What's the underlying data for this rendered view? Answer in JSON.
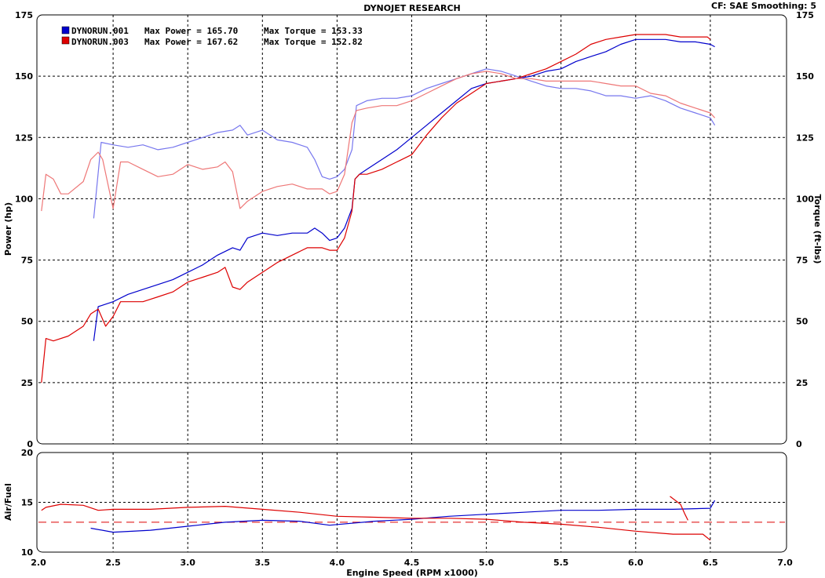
{
  "header": {
    "title": "DYNOJET RESEARCH",
    "settings": "CF: SAE  Smoothing: 5"
  },
  "legend": [
    {
      "run": "DYNORUN.001",
      "power_text": "Max Power = 165.70",
      "torque_text": "Max Torque = 153.33",
      "color": "#0000cc"
    },
    {
      "run": "DYNORUN.003",
      "power_text": "Max Power = 167.62",
      "torque_text": "Max Torque = 152.82",
      "color": "#dd0000"
    }
  ],
  "colors": {
    "run1_power": "#0000cc",
    "run1_torque": "#7777ee",
    "run2_power": "#dd0000",
    "run2_torque": "#ee7777",
    "grid": "#000000",
    "afr_ref": "#dd0000"
  },
  "chart_data": [
    {
      "type": "line",
      "title": "DYNOJET RESEARCH",
      "xlabel": "Engine Speed (RPM x1000)",
      "ylabel": "Power (hp)",
      "ylabel_right": "Torque (ft-lbs)",
      "xlim": [
        2.0,
        7.0
      ],
      "ylim": [
        0,
        175
      ],
      "ylim_right": [
        0,
        175
      ],
      "x_ticks": [
        "2.0",
        "2.5",
        "3.0",
        "3.5",
        "4.0",
        "4.5",
        "5.0",
        "5.5",
        "6.0",
        "6.5",
        "7.0"
      ],
      "y_ticks": [
        "0",
        "25",
        "50",
        "75",
        "100",
        "125",
        "150",
        "175"
      ],
      "grid": true,
      "legend_position": "top-left",
      "series": [
        {
          "name": "DYNORUN.001 Power",
          "role": "run1_power",
          "x": [
            2.37,
            2.4,
            2.5,
            2.6,
            2.7,
            2.8,
            2.9,
            3.0,
            3.1,
            3.2,
            3.3,
            3.35,
            3.4,
            3.5,
            3.6,
            3.7,
            3.8,
            3.85,
            3.9,
            3.95,
            4.0,
            4.05,
            4.1,
            4.12,
            4.15,
            4.2,
            4.3,
            4.4,
            4.5,
            4.6,
            4.7,
            4.8,
            4.9,
            5.0,
            5.1,
            5.2,
            5.3,
            5.4,
            5.5,
            5.6,
            5.7,
            5.8,
            5.9,
            6.0,
            6.1,
            6.2,
            6.3,
            6.4,
            6.5,
            6.53
          ],
          "y": [
            42,
            56,
            58,
            61,
            63,
            65,
            67,
            70,
            73,
            77,
            80,
            79,
            84,
            86,
            85,
            86,
            86,
            88,
            86,
            83,
            84,
            88,
            96,
            108,
            110,
            112,
            116,
            120,
            125,
            130,
            135,
            140,
            145,
            147,
            148,
            149,
            150,
            152,
            153,
            156,
            158,
            160,
            163,
            165,
            165,
            165,
            164,
            164,
            163,
            162
          ]
        },
        {
          "name": "DYNORUN.001 Torque",
          "role": "run1_torque",
          "x": [
            2.37,
            2.42,
            2.5,
            2.6,
            2.7,
            2.8,
            2.9,
            3.0,
            3.1,
            3.2,
            3.3,
            3.35,
            3.4,
            3.5,
            3.6,
            3.7,
            3.8,
            3.85,
            3.9,
            3.95,
            4.0,
            4.05,
            4.1,
            4.13,
            4.2,
            4.3,
            4.4,
            4.5,
            4.6,
            4.7,
            4.8,
            4.9,
            5.0,
            5.1,
            5.2,
            5.3,
            5.4,
            5.5,
            5.6,
            5.7,
            5.8,
            5.9,
            6.0,
            6.1,
            6.2,
            6.3,
            6.4,
            6.5,
            6.53
          ],
          "y": [
            92,
            123,
            122,
            121,
            122,
            120,
            121,
            123,
            125,
            127,
            128,
            130,
            126,
            128,
            124,
            123,
            121,
            116,
            109,
            108,
            109,
            112,
            120,
            138,
            140,
            141,
            141,
            142,
            145,
            147,
            149,
            151,
            153,
            152,
            150,
            148,
            146,
            145,
            145,
            144,
            142,
            142,
            141,
            142,
            140,
            137,
            135,
            133,
            130
          ]
        },
        {
          "name": "DYNORUN.003 Power",
          "role": "run2_power",
          "x": [
            2.02,
            2.05,
            2.1,
            2.2,
            2.3,
            2.35,
            2.4,
            2.45,
            2.5,
            2.55,
            2.6,
            2.7,
            2.8,
            2.9,
            3.0,
            3.1,
            3.2,
            3.25,
            3.3,
            3.35,
            3.4,
            3.5,
            3.6,
            3.7,
            3.8,
            3.9,
            3.95,
            4.0,
            4.05,
            4.1,
            4.12,
            4.15,
            4.2,
            4.3,
            4.4,
            4.5,
            4.6,
            4.7,
            4.8,
            4.9,
            5.0,
            5.1,
            5.2,
            5.3,
            5.4,
            5.5,
            5.6,
            5.7,
            5.8,
            5.9,
            6.0,
            6.1,
            6.2,
            6.3,
            6.4,
            6.45,
            6.48,
            6.5
          ],
          "y": [
            25,
            43,
            42,
            44,
            48,
            53,
            55,
            48,
            52,
            58,
            58,
            58,
            60,
            62,
            66,
            68,
            70,
            72,
            64,
            63,
            66,
            70,
            74,
            77,
            80,
            80,
            79,
            79,
            84,
            95,
            108,
            110,
            110,
            112,
            115,
            118,
            126,
            133,
            139,
            143,
            147,
            148,
            149,
            151,
            153,
            156,
            159,
            163,
            165,
            166,
            167,
            167,
            167,
            166,
            166,
            166,
            166,
            165
          ]
        },
        {
          "name": "DYNORUN.003 Torque",
          "role": "run2_torque",
          "x": [
            2.02,
            2.05,
            2.1,
            2.15,
            2.2,
            2.3,
            2.35,
            2.4,
            2.43,
            2.5,
            2.55,
            2.6,
            2.7,
            2.8,
            2.9,
            3.0,
            3.1,
            3.2,
            3.25,
            3.3,
            3.35,
            3.4,
            3.5,
            3.6,
            3.7,
            3.8,
            3.9,
            3.95,
            4.0,
            4.05,
            4.1,
            4.13,
            4.2,
            4.3,
            4.4,
            4.5,
            4.6,
            4.7,
            4.8,
            4.9,
            5.0,
            5.1,
            5.2,
            5.3,
            5.4,
            5.5,
            5.6,
            5.7,
            5.8,
            5.9,
            6.0,
            6.1,
            6.2,
            6.3,
            6.4,
            6.5,
            6.53
          ],
          "y": [
            95,
            110,
            108,
            102,
            102,
            107,
            116,
            119,
            116,
            96,
            115,
            115,
            112,
            109,
            110,
            114,
            112,
            113,
            115,
            111,
            96,
            99,
            103,
            105,
            106,
            104,
            104,
            102,
            103,
            110,
            131,
            136,
            137,
            138,
            138,
            140,
            143,
            146,
            149,
            151,
            152,
            151,
            149,
            149,
            148,
            148,
            148,
            148,
            147,
            146,
            146,
            143,
            142,
            139,
            137,
            135,
            133
          ]
        }
      ]
    },
    {
      "type": "line",
      "xlabel": "Engine Speed (RPM x1000)",
      "ylabel": "Air/Fuel",
      "xlim": [
        2.0,
        7.0
      ],
      "ylim": [
        10,
        20
      ],
      "y_ticks": [
        "10",
        "15",
        "20"
      ],
      "grid": true,
      "reference_line": {
        "y": 13.0,
        "style": "dashed",
        "color": "#dd0000"
      },
      "series": [
        {
          "name": "DYNORUN.001 Air/Fuel",
          "role": "run1_power",
          "x": [
            2.35,
            2.5,
            2.75,
            3.0,
            3.25,
            3.5,
            3.75,
            3.95,
            4.25,
            4.5,
            4.75,
            5.0,
            5.25,
            5.5,
            5.75,
            6.0,
            6.25,
            6.5,
            6.53
          ],
          "y": [
            12.4,
            12.0,
            12.2,
            12.6,
            13.0,
            13.2,
            13.1,
            12.7,
            13.1,
            13.3,
            13.6,
            13.8,
            14.0,
            14.2,
            14.2,
            14.3,
            14.3,
            14.4,
            15.2
          ]
        },
        {
          "name": "DYNORUN.003 Air/Fuel",
          "role": "run2_power",
          "x": [
            2.02,
            2.05,
            2.15,
            2.3,
            2.4,
            2.5,
            2.75,
            3.0,
            3.25,
            3.5,
            3.75,
            4.0,
            4.25,
            4.5,
            4.75,
            5.0,
            5.25,
            5.5,
            5.75,
            6.0,
            6.25,
            6.45,
            6.5
          ],
          "y": [
            14.2,
            14.5,
            14.8,
            14.7,
            14.2,
            14.3,
            14.3,
            14.5,
            14.6,
            14.3,
            14.0,
            13.6,
            13.5,
            13.4,
            13.4,
            13.3,
            13.0,
            12.8,
            12.5,
            12.1,
            11.8,
            11.8,
            11.2
          ]
        },
        {
          "name": "DYNORUN.003 Air/Fuel end",
          "role": "run2_power",
          "x": [
            6.23,
            6.3,
            6.33,
            6.35
          ],
          "y": [
            15.6,
            14.8,
            13.8,
            13.2
          ]
        }
      ]
    }
  ]
}
